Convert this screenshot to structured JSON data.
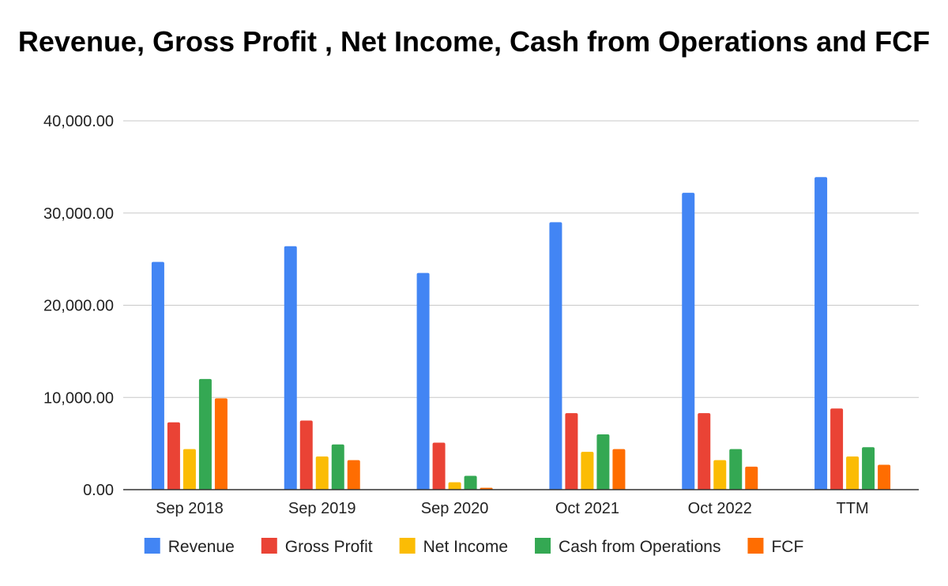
{
  "chart_data": {
    "type": "bar",
    "title": "Revenue, Gross Profit , Net Income, Cash from Operations and FCF",
    "categories": [
      "Sep 2018",
      "Sep 2019",
      "Sep 2020",
      "Oct 2021",
      "Oct 2022",
      "TTM"
    ],
    "series": [
      {
        "name": "Revenue",
        "color": "#4285f4",
        "values": [
          24700,
          26400,
          23500,
          29000,
          32200,
          33900
        ]
      },
      {
        "name": "Gross Profit",
        "color": "#ea4335",
        "values": [
          7300,
          7500,
          5100,
          8300,
          8300,
          8800
        ]
      },
      {
        "name": "Net Income",
        "color": "#fbbc04",
        "values": [
          4400,
          3600,
          800,
          4100,
          3200,
          3600
        ]
      },
      {
        "name": "Cash from Operations",
        "color": "#34a853",
        "values": [
          12000,
          4900,
          1500,
          6000,
          4400,
          4600
        ]
      },
      {
        "name": "FCF",
        "color": "#ff6d01",
        "values": [
          9900,
          3200,
          200,
          4400,
          2500,
          2700
        ]
      }
    ],
    "ylim": [
      0,
      40000
    ],
    "yticks": [
      "0.00",
      "10,000.00",
      "20,000.00",
      "30,000.00",
      "40,000.00"
    ],
    "grid": true,
    "legend": "bottom"
  }
}
